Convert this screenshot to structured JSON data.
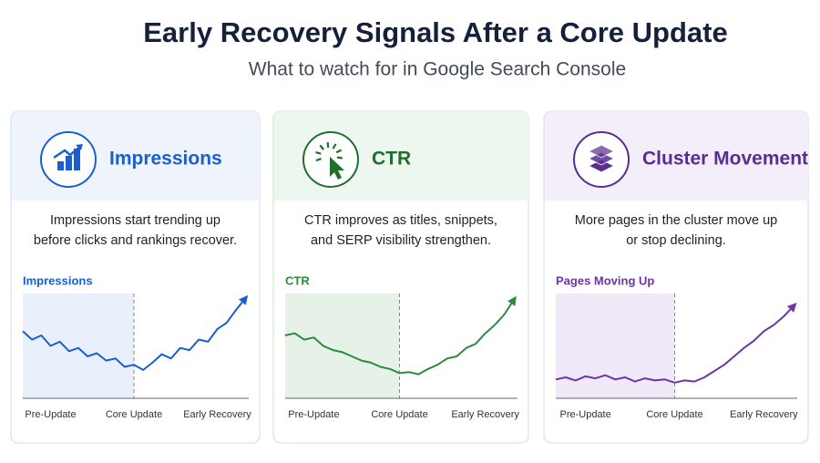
{
  "header": {
    "title": "Early Recovery Signals After a Core Update",
    "subtitle": "What to watch for in Google Search Console"
  },
  "cards": [
    {
      "title": "Impressions",
      "description": [
        "Impressions start trending up",
        "before clicks and rankings recover."
      ]
    },
    {
      "title": "CTR",
      "description": [
        "CTR improves as titles, snippets,",
        "and SERP visibility strengthen."
      ]
    },
    {
      "title": "Cluster Movement",
      "description": [
        "More pages in the cluster move up",
        "or stop declining."
      ]
    }
  ],
  "chart_data": [
    {
      "type": "line",
      "title": "Impressions",
      "color": "#1a5fd0",
      "categories": [
        null,
        null,
        null,
        "Pre-Update",
        null,
        null,
        null,
        null,
        null,
        null,
        null,
        null,
        "Core Update",
        null,
        null,
        null,
        null,
        null,
        null,
        null,
        null,
        "Early Recovery",
        null,
        null,
        null
      ],
      "values": [
        64,
        56,
        60,
        50,
        54,
        45,
        48,
        40,
        43,
        36,
        38,
        30,
        32,
        27,
        34,
        42,
        38,
        48,
        46,
        56,
        54,
        66,
        72,
        84,
        95
      ],
      "ylim": [
        0,
        100
      ]
    },
    {
      "type": "line",
      "title": "CTR",
      "color": "#2e8b3e",
      "categories": [
        null,
        null,
        null,
        "Pre-Update",
        null,
        null,
        null,
        null,
        null,
        null,
        null,
        null,
        "Core Update",
        null,
        null,
        null,
        null,
        null,
        null,
        null,
        null,
        "Early Recovery",
        null,
        null,
        null
      ],
      "values": [
        60,
        62,
        56,
        58,
        50,
        46,
        44,
        40,
        36,
        34,
        30,
        28,
        24,
        25,
        23,
        28,
        32,
        38,
        40,
        48,
        52,
        62,
        70,
        80,
        94
      ],
      "ylim": [
        0,
        100
      ]
    },
    {
      "type": "line",
      "title": "Pages Moving Up",
      "color": "#6b36a8",
      "categories": [
        null,
        null,
        null,
        "Pre-Update",
        null,
        null,
        null,
        null,
        null,
        null,
        null,
        null,
        "Core Update",
        null,
        null,
        null,
        null,
        null,
        null,
        null,
        null,
        "Early Recovery",
        null,
        null,
        null
      ],
      "values": [
        18,
        20,
        17,
        21,
        19,
        22,
        18,
        20,
        16,
        19,
        17,
        18,
        15,
        17,
        16,
        20,
        26,
        32,
        40,
        48,
        55,
        64,
        70,
        78,
        88
      ],
      "ylim": [
        0,
        100
      ]
    }
  ]
}
